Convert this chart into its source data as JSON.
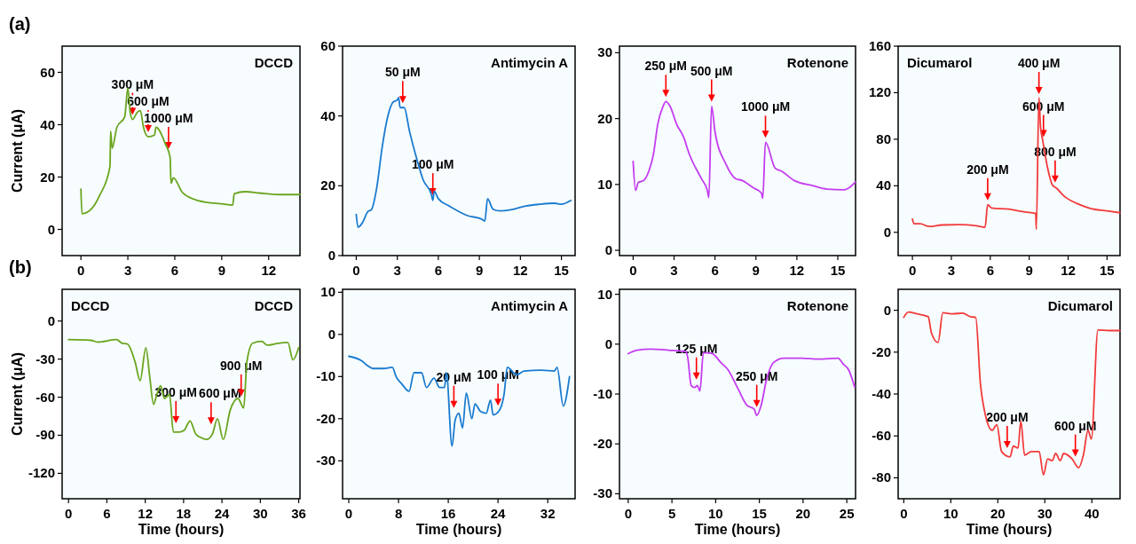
{
  "chart_data": [
    {
      "type": "line",
      "subtitle": "(a)",
      "title": "DCCD",
      "ylabel": "Current (μA)",
      "xlim": [
        -1.2,
        14
      ],
      "xticks": [
        0,
        3,
        6,
        9,
        12
      ],
      "ylim": [
        -10,
        70
      ],
      "yticks": [
        0,
        20,
        40,
        60
      ],
      "series": [
        {
          "color": "#6aa51e",
          "x": [
            0,
            0.07,
            0.7,
            1.2,
            1.86,
            1.9,
            2.0,
            2.3,
            2.8,
            3.0,
            3.15,
            3.3,
            3.6,
            3.8,
            4.0,
            4.3,
            4.7,
            4.8,
            5.4,
            5.7,
            5.76,
            5.9,
            6.5,
            7.5,
            9.1,
            9.7,
            9.8,
            10.5,
            11.4,
            12.8,
            14
          ],
          "values": [
            15.4,
            6,
            8,
            13,
            24,
            37.5,
            31,
            39,
            43,
            54,
            44.7,
            42,
            44.7,
            45.4,
            39,
            35.4,
            36,
            39,
            32.6,
            27.6,
            17.6,
            19.7,
            14,
            11,
            9.7,
            9.3,
            13.6,
            14.4,
            13.9,
            13.3,
            13.3
          ]
        }
      ],
      "annotations": [
        {
          "text": "300 μM",
          "x": 3.3,
          "y": 42
        },
        {
          "text": "600 μM",
          "x": 4.3,
          "y": 35.4
        },
        {
          "text": "1000 μM",
          "x": 5.6,
          "y": 29
        }
      ]
    },
    {
      "type": "line",
      "title": "Antimycin A",
      "xlim": [
        -1,
        16
      ],
      "xticks": [
        0,
        3,
        6,
        9,
        12,
        15
      ],
      "ylim": [
        0,
        60
      ],
      "yticks": [
        0,
        20,
        40,
        60
      ],
      "series": [
        {
          "color": "#1a7bd0",
          "x": [
            0,
            0.13,
            0.45,
            0.85,
            1.1,
            1.5,
            1.9,
            2.3,
            2.7,
            3.0,
            3.1,
            3.2,
            3.5,
            3.9,
            4.4,
            4.9,
            5.5,
            5.6,
            5.7,
            6.0,
            6.8,
            8.1,
            9.2,
            9.4,
            9.6,
            10,
            10.5,
            11.3,
            12.4,
            13.4,
            14.5,
            15,
            15.7
          ],
          "values": [
            11.8,
            8.1,
            9.4,
            12.6,
            13.1,
            19.5,
            31.2,
            39.8,
            44,
            44.6,
            45.3,
            42.4,
            42.4,
            35.5,
            28,
            21.6,
            17.4,
            15.8,
            18.4,
            16.3,
            14.2,
            11.5,
            10.4,
            9.9,
            16.3,
            13.3,
            12.8,
            13.1,
            14.2,
            14.7,
            15,
            14.7,
            15.8
          ]
        }
      ],
      "annotations": [
        {
          "text": "50 μM",
          "x": 3.4,
          "y": 42.4
        },
        {
          "text": "100 μM",
          "x": 5.6,
          "y": 16
        }
      ]
    },
    {
      "type": "line",
      "title": "Rotenone",
      "xlim": [
        -1,
        16.3
      ],
      "xticks": [
        0,
        3,
        6,
        9,
        12,
        15
      ],
      "ylim": [
        -0.8,
        31
      ],
      "yticks": [
        0,
        10,
        20,
        30
      ],
      "series": [
        {
          "color": "#c43cf0",
          "x": [
            0,
            0.18,
            0.38,
            0.77,
            1.15,
            1.5,
            1.8,
            2.2,
            2.4,
            2.7,
            3.2,
            3.7,
            4.1,
            5.0,
            5.45,
            5.55,
            5.75,
            6.0,
            6.8,
            7.5,
            8.0,
            8.8,
            9.4,
            9.5,
            9.7,
            10.4,
            10.9,
            11.8,
            13.2,
            14.2,
            15.5,
            16.3
          ],
          "values": [
            13.5,
            9.1,
            10.3,
            10.6,
            12,
            14.7,
            19.1,
            21.9,
            22.6,
            21.9,
            19.1,
            17.2,
            14.7,
            10.9,
            9,
            8,
            21.9,
            18,
            13.1,
            10.9,
            10.6,
            9.5,
            8.7,
            7.9,
            16.4,
            12.5,
            12,
            10.6,
            9.8,
            9.3,
            9.2,
            10.4
          ]
        }
      ],
      "annotations": [
        {
          "text": "250 μM",
          "x": 2.4,
          "y": 22.6
        },
        {
          "text": "500 μM",
          "x": 5.75,
          "y": 21.9
        },
        {
          "text": "1000 μM",
          "x": 9.7,
          "y": 16.4
        }
      ]
    },
    {
      "type": "line",
      "title": "Dicumarol",
      "xlim": [
        -1.1,
        16
      ],
      "xticks": [
        0,
        3,
        6,
        9,
        12,
        15
      ],
      "ylim": [
        -20,
        160
      ],
      "yticks": [
        0,
        40,
        80,
        120,
        160
      ],
      "series": [
        {
          "color": "#f23a3a",
          "x": [
            0,
            0.13,
            0.6,
            1.3,
            2.3,
            3.6,
            4.9,
            5.6,
            5.8,
            6.1,
            7.4,
            8.7,
            9.5,
            9.55,
            9.75,
            9.87,
            10.05,
            10.4,
            10.8,
            11.1,
            11.7,
            12.7,
            13.7,
            15,
            16
          ],
          "values": [
            11.4,
            7.3,
            7.3,
            5,
            6.3,
            6.6,
            5.7,
            4.4,
            23.7,
            20.9,
            19.9,
            17.4,
            16.1,
            2.5,
            115.8,
            91,
            78.5,
            56.3,
            40.5,
            38,
            31,
            24.7,
            20.6,
            18.4,
            16.8
          ]
        }
      ],
      "annotations": [
        {
          "text": "200 μM",
          "x": 5.8,
          "y": 23.7
        },
        {
          "text": "400 μM",
          "x": 9.75,
          "y": 115
        },
        {
          "text": "600 μM",
          "x": 10.1,
          "y": 78
        },
        {
          "text": "800 μM",
          "x": 11.0,
          "y": 39
        }
      ]
    },
    {
      "type": "line",
      "subtitle": "(b)",
      "title": "DCCD",
      "xlabel": "Time (hours)",
      "ylabel": "Current (μA)",
      "xlim": [
        -1,
        36.2
      ],
      "xticks": [
        0,
        6,
        12,
        18,
        24,
        30,
        36
      ],
      "ylim": [
        -140,
        25
      ],
      "yticks": [
        0,
        -30,
        -60,
        -90,
        -120
      ],
      "series": [
        {
          "color": "#6aa51e",
          "x": [
            0,
            3.5,
            4.6,
            7.5,
            8.4,
            9.2,
            10.4,
            11.2,
            12.1,
            12.7,
            13.3,
            13.8,
            14.4,
            15,
            15.8,
            16.4,
            17.3,
            18.1,
            19,
            19.9,
            20.7,
            21.6,
            22.5,
            23.3,
            24.2,
            25.3,
            26.5,
            27.4,
            27.9,
            28.8,
            30.2,
            31.1,
            32.8,
            34.3,
            35.1,
            36
          ],
          "values": [
            -14.6,
            -15.2,
            -16.6,
            -14.6,
            -17.5,
            -18,
            -32,
            -47,
            -21,
            -43.7,
            -65.6,
            -58,
            -51,
            -61,
            -58,
            -87.5,
            -87.5,
            -86,
            -78.7,
            -89,
            -91.8,
            -93.3,
            -89,
            -77,
            -93.3,
            -70,
            -61,
            -68.5,
            -32,
            -17.5,
            -16,
            -19,
            -17.5,
            -16.9,
            -30.6,
            -21
          ]
        }
      ],
      "annotations": [
        "DCCD",
        {
          "text": "300 μM",
          "x": 16.8,
          "y": -84
        },
        {
          "text": "600 μM",
          "x": 22.3,
          "y": -85
        },
        {
          "text": "900 μM",
          "x": 27.0,
          "y": -63
        }
      ]
    },
    {
      "type": "line",
      "title": "Antimycin A",
      "xlabel": "Time (hours)",
      "xlim": [
        -1,
        36.4
      ],
      "xticks": [
        0,
        8,
        16,
        24,
        32
      ],
      "ylim": [
        -39,
        10.7
      ],
      "yticks": [
        10,
        0,
        -10,
        -20,
        -30
      ],
      "series": [
        {
          "color": "#1a7bd0",
          "x": [
            0,
            2.1,
            3,
            3.9,
            5.6,
            7,
            7.6,
            8.5,
            9.7,
            10.5,
            11.7,
            12.5,
            13.7,
            14.6,
            15.4,
            15.7,
            16.6,
            17.1,
            17.7,
            18.3,
            18.9,
            19.8,
            20.3,
            21.2,
            22.1,
            22.8,
            23.2,
            24.1,
            24.97,
            25.5,
            27,
            28.2,
            31,
            33.1,
            33.5,
            34.5,
            35.5
          ],
          "values": [
            -5.2,
            -6.3,
            -7.4,
            -8.1,
            -8.1,
            -7.8,
            -10,
            -11.7,
            -13.5,
            -9.1,
            -9.1,
            -12.6,
            -10.4,
            -12.6,
            -12.6,
            -9.1,
            -26.5,
            -20.4,
            -18.7,
            -22.2,
            -13.9,
            -20,
            -16.5,
            -18.3,
            -18.7,
            -15.6,
            -19.1,
            -18.3,
            -14.3,
            -7.8,
            -9.6,
            -8.7,
            -8.5,
            -8.7,
            -7.8,
            -17,
            -10
          ]
        }
      ],
      "annotations": [
        {
          "text": "20 μM",
          "x": 16.9,
          "y": -18.5
        },
        {
          "text": "100 μM",
          "x": 24,
          "y": -18
        }
      ]
    },
    {
      "type": "line",
      "title": "Rotenone",
      "xlabel": "Time (hours)",
      "xlim": [
        -1,
        26
      ],
      "xticks": [
        0,
        5,
        10,
        15,
        20,
        25
      ],
      "ylim": [
        -31,
        11
      ],
      "yticks": [
        10,
        0,
        -10,
        -20,
        -30
      ],
      "series": [
        {
          "color": "#c43cf0",
          "x": [
            0,
            1,
            2.6,
            4.6,
            6.6,
            6.8,
            7.2,
            7.6,
            7.9,
            8.2,
            8.6,
            9.6,
            10.6,
            11.4,
            12.6,
            13.6,
            14.4,
            14.7,
            15.2,
            15.8,
            16.6,
            17.8,
            19.8,
            21.8,
            24,
            24.6,
            25.2,
            25.9
          ],
          "values": [
            -1.9,
            -1.2,
            -1,
            -1.2,
            -1.5,
            -2.6,
            -8.3,
            -8.7,
            -8.3,
            -9.4,
            -1.7,
            -1.9,
            -3.7,
            -5.1,
            -9.1,
            -12.3,
            -13,
            -14.3,
            -12.3,
            -7.3,
            -3.7,
            -2.8,
            -2.8,
            -3,
            -2.8,
            -4,
            -5.1,
            -8.6
          ]
        }
      ],
      "annotations": [
        {
          "text": "125 μM",
          "x": 7.8,
          "y": -8
        },
        {
          "text": "250 μM",
          "x": 14.7,
          "y": -13.5
        }
      ]
    },
    {
      "type": "line",
      "title": "Dicumarol",
      "xlabel": "Time (hours)",
      "xlim": [
        -1.2,
        46
      ],
      "xticks": [
        0,
        10,
        20,
        30,
        40
      ],
      "ylim": [
        -90,
        10
      ],
      "yticks": [
        0,
        -20,
        -40,
        -60,
        -80
      ],
      "series": [
        {
          "color": "#f23a3a",
          "x": [
            0,
            1,
            2.8,
            5.2,
            5.9,
            7.3,
            8.3,
            10.4,
            12.5,
            14.2,
            15.3,
            16.3,
            17.4,
            18.8,
            19.8,
            20.8,
            22.6,
            23.3,
            24.3,
            24.9,
            25.7,
            27.1,
            28.8,
            29.7,
            30.6,
            31.6,
            32.3,
            33.3,
            34,
            35.8,
            37.2,
            38.2,
            39.2,
            39.9,
            41.3,
            43.75,
            46
          ],
          "values": [
            -3.4,
            -0.9,
            -1.7,
            -3.1,
            -11,
            -15.4,
            -1.2,
            -1.7,
            -1.4,
            -3.1,
            -3.4,
            -35,
            -50.4,
            -57.3,
            -54.7,
            -67.5,
            -70,
            -64.9,
            -65.8,
            -53,
            -69.2,
            -67.5,
            -67.5,
            -78.6,
            -71,
            -71.8,
            -68.4,
            -71.8,
            -68.4,
            -71,
            -75.2,
            -69.2,
            -57.3,
            -61.5,
            -9.4,
            -9.7,
            -9.7
          ]
        }
      ],
      "annotations": [
        {
          "text": "200 μM",
          "x": 22,
          "y": -68
        },
        {
          "text": "600 μM",
          "x": 36.5,
          "y": -72
        }
      ]
    }
  ]
}
